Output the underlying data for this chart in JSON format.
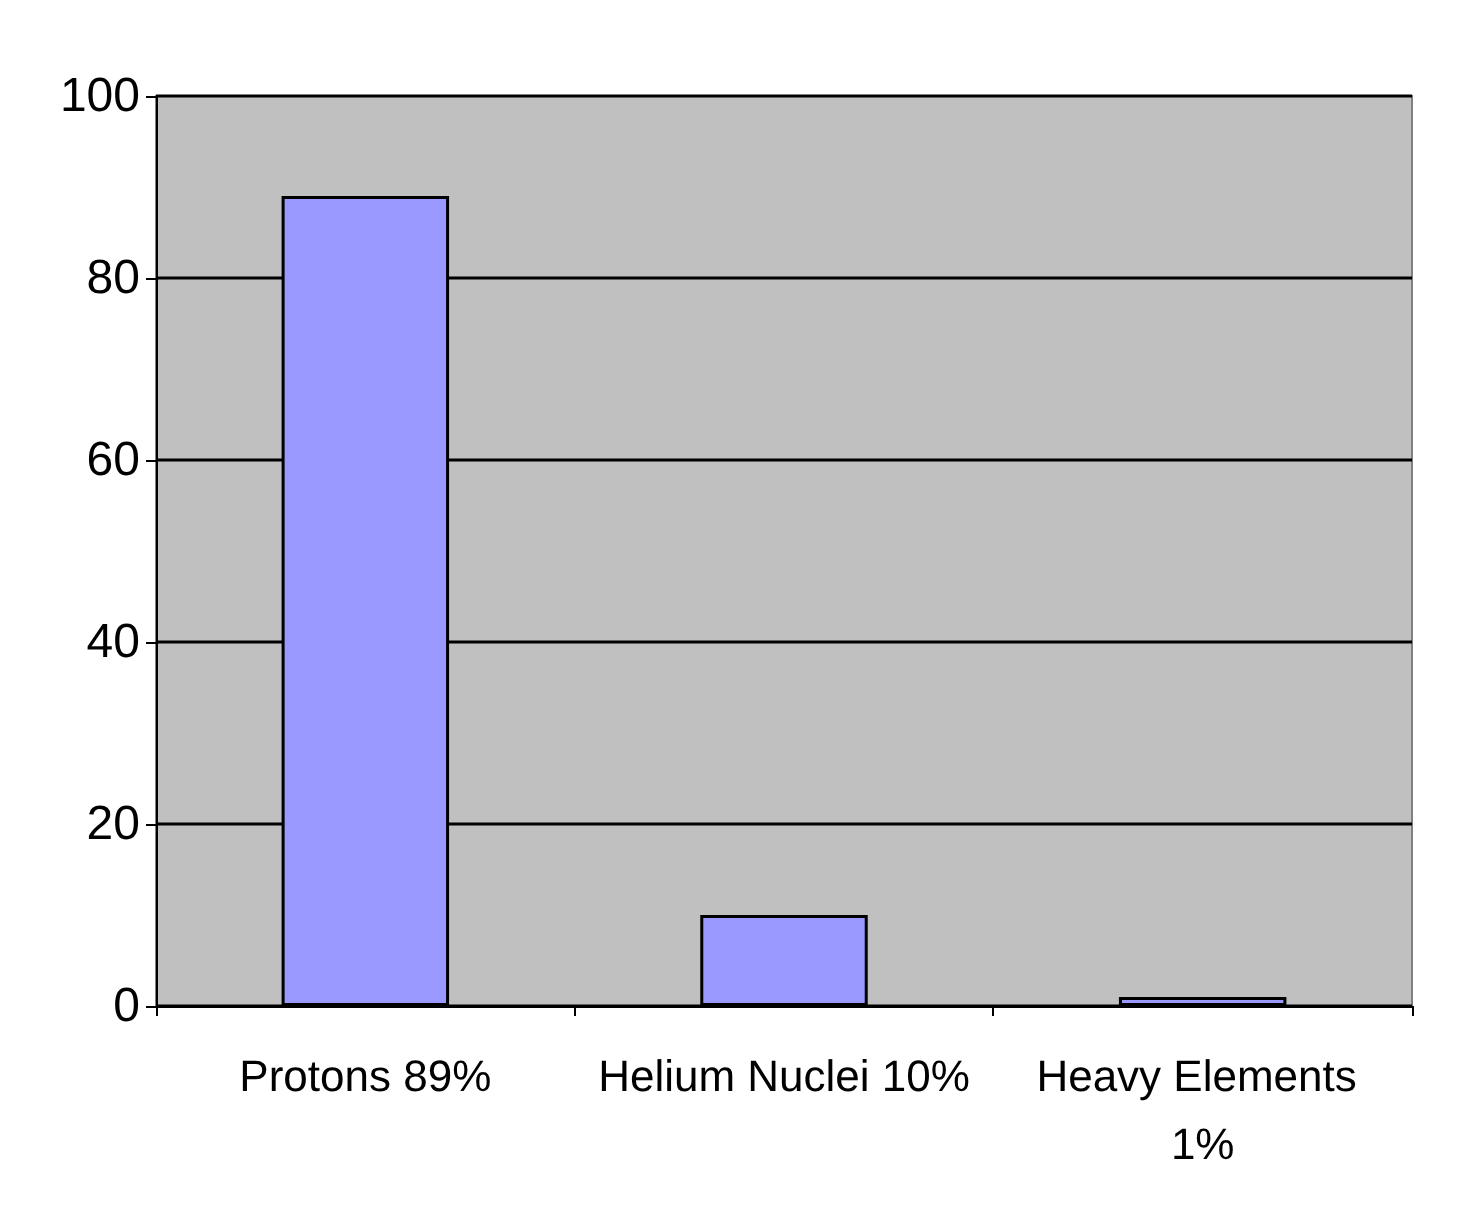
{
  "chart_data": {
    "type": "bar",
    "categories": [
      "Protons 89%",
      "Helium Nuclei 10%",
      "Heavy Elements 1%"
    ],
    "values": [
      89,
      10,
      1
    ],
    "color": "#9999ff",
    "ylim": [
      0,
      100
    ],
    "yticks": [
      0,
      20,
      40,
      60,
      80,
      100
    ],
    "grid": "y"
  }
}
